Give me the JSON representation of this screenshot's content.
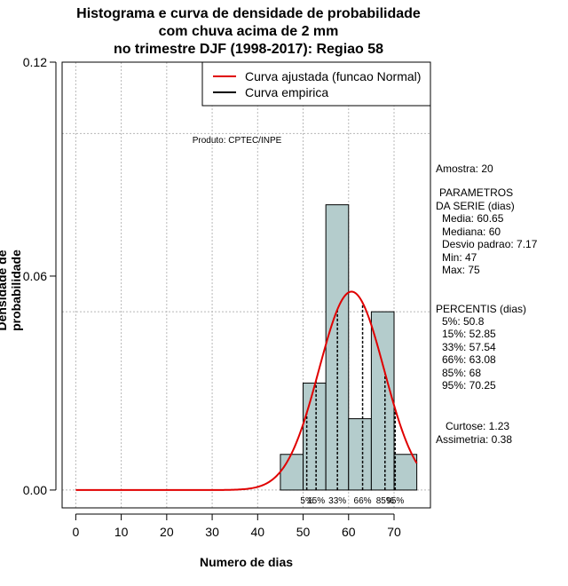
{
  "chart_data": {
    "type": "histogram",
    "title_lines": [
      "Histograma e curva de densidade de probabilidade",
      "com chuva acima de 2 mm",
      "no trimestre DJF (1998-2017): Regiao 58"
    ],
    "xlabel": "Numero de dias",
    "ylabel": "Densidade de probabilidade",
    "xlim": [
      -3,
      78
    ],
    "ylim": [
      -0.005,
      0.12
    ],
    "x_ticks": [
      0,
      10,
      20,
      30,
      40,
      50,
      60,
      70
    ],
    "y_ticks": [
      0.0,
      0.06,
      0.12
    ],
    "y_tick_labels": [
      "0.00",
      "0.06",
      "0.12"
    ],
    "grid_x": [
      0,
      10,
      20,
      30,
      40,
      50,
      60,
      70
    ],
    "grid_y": [
      0.0,
      0.05,
      0.1
    ],
    "bins": [
      {
        "x0": 45,
        "x1": 50,
        "density": 0.01
      },
      {
        "x0": 50,
        "x1": 55,
        "density": 0.03
      },
      {
        "x0": 55,
        "x1": 60,
        "density": 0.08
      },
      {
        "x0": 60,
        "x1": 65,
        "density": 0.02
      },
      {
        "x0": 65,
        "x1": 70,
        "density": 0.05
      },
      {
        "x0": 70,
        "x1": 75,
        "density": 0.01
      }
    ],
    "normal_fit": {
      "mean": 60.65,
      "sd": 7.17,
      "x_from": 0,
      "x_to": 75,
      "color": "#e00000"
    },
    "bar_fill": "#b4cccc",
    "legend": [
      {
        "label": "Curva ajustada (funcao Normal)",
        "color": "#e00000"
      },
      {
        "label": "Curva empirica",
        "color": "#000000"
      }
    ],
    "legend_position": "top-right",
    "product_label": "Produto: CPTEC/INPE",
    "percentile_markers": [
      {
        "label": "5%",
        "value": 50.8
      },
      {
        "label": "15%",
        "value": 52.85
      },
      {
        "label": "33%",
        "value": 57.54
      },
      {
        "label": "66%",
        "value": 63.08
      },
      {
        "label": "85%",
        "value": 68
      },
      {
        "label": "95%",
        "value": 70.25
      }
    ]
  },
  "sidebar": {
    "amostra": "Amostra: 20",
    "param_title_1": "PARAMETROS",
    "param_title_2": "DA SERIE (dias)",
    "media": "Media: 60.65",
    "mediana": "Mediana: 60",
    "desvio": "Desvio padrao: 7.17",
    "min": "Min: 47",
    "max": "Max: 75",
    "percentis_title": "PERCENTIS (dias)",
    "p5": "5%: 50.8",
    "p15": "15%: 52.85",
    "p33": "33%: 57.54",
    "p66": "66%: 63.08",
    "p85": "85%: 68",
    "p95": "95%: 70.25",
    "curtose": "Curtose: 1.23",
    "assimetria": "Assimetria: 0.38"
  }
}
